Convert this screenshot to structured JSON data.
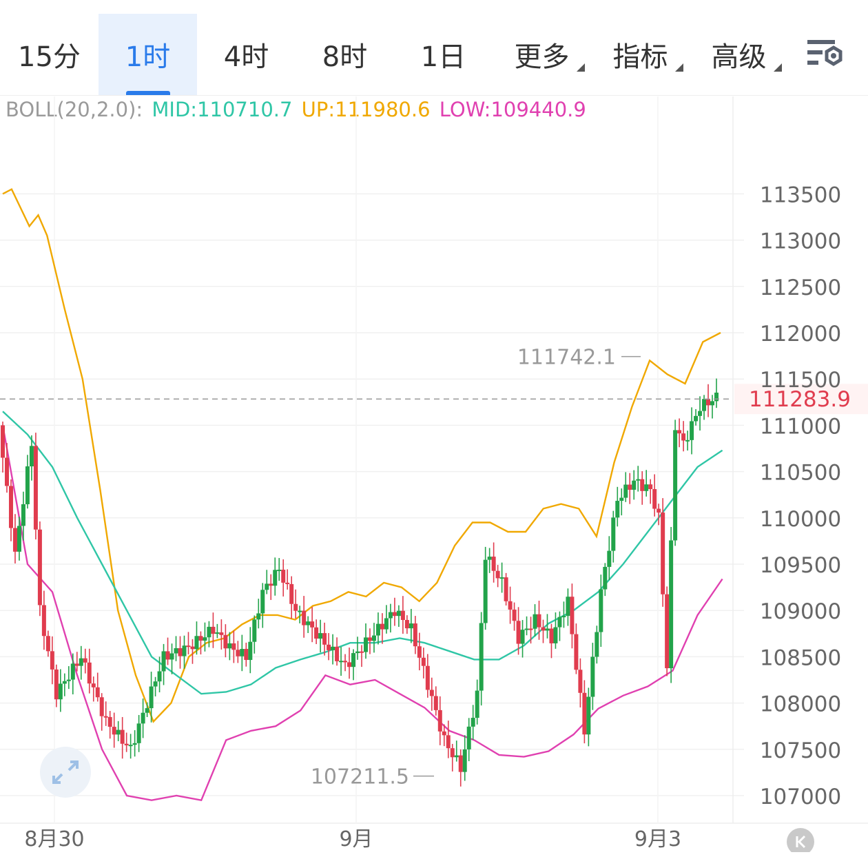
{
  "tabs": [
    {
      "label": "15分",
      "active": false
    },
    {
      "label": "1时",
      "active": true
    },
    {
      "label": "4时",
      "active": false
    },
    {
      "label": "8时",
      "active": false
    },
    {
      "label": "1日",
      "active": false
    },
    {
      "label": "更多",
      "active": false,
      "dropdown": true
    },
    {
      "label": "指标",
      "active": false,
      "dropdown": true
    },
    {
      "label": "高级",
      "active": false,
      "dropdown": true
    }
  ],
  "settings_icon": "chart-settings-icon",
  "indicator": {
    "name": "BOLL(20,2.0):",
    "mid": "MID:110710.7",
    "up": "UP:111980.6",
    "low": "LOW:109440.9"
  },
  "colors": {
    "accent": "#2a7bea",
    "mid": "#2fc6a6",
    "up": "#f0a800",
    "low": "#e040b0",
    "candle_up": "#22a34a",
    "candle_down": "#e03c4e",
    "last_price": "#e03c4e"
  },
  "chart_data": {
    "type": "candlestick",
    "y_axis_labels": [
      "113500",
      "113000",
      "112500",
      "112000",
      "111500",
      "111000",
      "110500",
      "110000",
      "109500",
      "109000",
      "108500",
      "108000",
      "107500",
      "107000"
    ],
    "x_axis_labels": [
      "8月30",
      "9月",
      "9月3"
    ],
    "last_price": "111283.9",
    "high_marker": "111742.1",
    "low_marker": "107211.5",
    "ylim": [
      106800,
      114100
    ],
    "boll_up": [
      [
        0,
        113500
      ],
      [
        2,
        113550
      ],
      [
        6,
        113150
      ],
      [
        8,
        113270
      ],
      [
        10,
        113050
      ],
      [
        14,
        112250
      ],
      [
        18,
        111500
      ],
      [
        22,
        110300
      ],
      [
        26,
        109000
      ],
      [
        30,
        108300
      ],
      [
        34,
        107800
      ],
      [
        38,
        108000
      ],
      [
        42,
        108500
      ],
      [
        46,
        108650
      ],
      [
        50,
        108700
      ],
      [
        54,
        108850
      ],
      [
        58,
        108950
      ],
      [
        62,
        108950
      ],
      [
        66,
        108900
      ],
      [
        70,
        109050
      ],
      [
        74,
        109100
      ],
      [
        78,
        109200
      ],
      [
        82,
        109150
      ],
      [
        86,
        109300
      ],
      [
        90,
        109250
      ],
      [
        94,
        109100
      ],
      [
        98,
        109300
      ],
      [
        102,
        109700
      ],
      [
        106,
        109950
      ],
      [
        110,
        109950
      ],
      [
        114,
        109850
      ],
      [
        118,
        109850
      ],
      [
        122,
        110100
      ],
      [
        126,
        110150
      ],
      [
        130,
        110100
      ],
      [
        134,
        109800
      ],
      [
        138,
        110600
      ],
      [
        142,
        111200
      ],
      [
        146,
        111700
      ],
      [
        150,
        111550
      ],
      [
        154,
        111450
      ],
      [
        158,
        111900
      ],
      [
        162,
        112000
      ]
    ],
    "boll_mid": [
      [
        0,
        111150
      ],
      [
        4,
        110900
      ],
      [
        8,
        110550
      ],
      [
        12,
        110000
      ],
      [
        16,
        109500
      ],
      [
        20,
        109000
      ],
      [
        24,
        108500
      ],
      [
        28,
        108300
      ],
      [
        32,
        108100
      ],
      [
        36,
        108120
      ],
      [
        40,
        108200
      ],
      [
        44,
        108380
      ],
      [
        48,
        108470
      ],
      [
        52,
        108550
      ],
      [
        56,
        108650
      ],
      [
        60,
        108650
      ],
      [
        64,
        108700
      ],
      [
        68,
        108650
      ],
      [
        72,
        108560
      ],
      [
        76,
        108470
      ],
      [
        80,
        108470
      ],
      [
        84,
        108620
      ],
      [
        88,
        108860
      ],
      [
        92,
        109000
      ],
      [
        96,
        109200
      ],
      [
        100,
        109500
      ],
      [
        104,
        109850
      ],
      [
        108,
        110200
      ],
      [
        112,
        110550
      ],
      [
        116,
        110730
      ]
    ],
    "boll_low": [
      [
        0,
        111000
      ],
      [
        4,
        109500
      ],
      [
        8,
        109200
      ],
      [
        12,
        108300
      ],
      [
        16,
        107500
      ],
      [
        20,
        107000
      ],
      [
        24,
        106950
      ],
      [
        28,
        107000
      ],
      [
        32,
        106950
      ],
      [
        36,
        107600
      ],
      [
        40,
        107700
      ],
      [
        44,
        107750
      ],
      [
        48,
        107920
      ],
      [
        52,
        108300
      ],
      [
        56,
        108200
      ],
      [
        60,
        108250
      ],
      [
        64,
        108100
      ],
      [
        68,
        107950
      ],
      [
        72,
        107700
      ],
      [
        76,
        107600
      ],
      [
        80,
        107440
      ],
      [
        84,
        107420
      ],
      [
        88,
        107480
      ],
      [
        92,
        107660
      ],
      [
        96,
        107940
      ],
      [
        100,
        108080
      ],
      [
        104,
        108180
      ],
      [
        108,
        108350
      ],
      [
        112,
        108950
      ],
      [
        116,
        109340
      ]
    ]
  }
}
